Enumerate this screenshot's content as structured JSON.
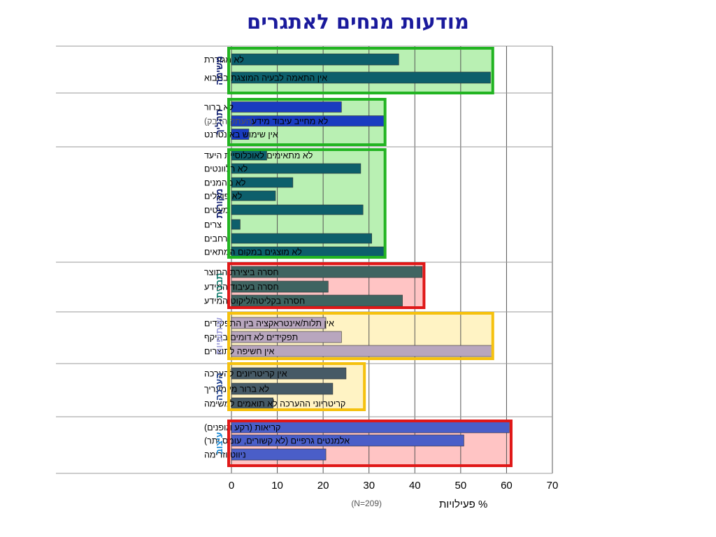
{
  "title": "מודעות מנחים לאתגרים",
  "chart_data": {
    "type": "bar",
    "orientation": "horizontal",
    "title": "מודעות מנחים לאתגרים",
    "xlabel": "% פעילויות",
    "xlabel_note": "(N=209)",
    "xlim": [
      0,
      70
    ],
    "xticks": [
      "0",
      "10",
      "20",
      "30",
      "40",
      "50",
      "60",
      "70"
    ],
    "grid": true,
    "groups": [
      {
        "name": "משימה",
        "name_color": "#0d1b6e",
        "box_color": "#22b422",
        "fill_color": "#b9f0b3",
        "box_max": 57,
        "bars": [
          {
            "label": "לא מגודרת",
            "value": 36.5,
            "color": "#0d5f6b"
          },
          {
            "label": "אין התאמה לבעיה המוצגת  במבוא",
            "value": 56.5,
            "color": "#0d5f6b"
          }
        ]
      },
      {
        "name": "תהליך",
        "name_color": "#0d1b6e",
        "box_color": "#22b422",
        "fill_color": "#b9f0b3",
        "box_max": 33.5,
        "bars": [
          {
            "label": "לא ברור",
            "value": 24,
            "color": "#1a3cc0"
          },
          {
            "label": "לא מחייב עיבוד מידע",
            "label_note": "(העתק הדבק)",
            "value": 33.5,
            "color": "#1a3cc0"
          },
          {
            "label": "אין שימוש באינטרנט",
            "value": 3.8,
            "color": "#1a3cc0"
          }
        ]
      },
      {
        "name": "מקורות",
        "name_color": "#0d1b6e",
        "box_color": "#22b422",
        "fill_color": "#b9f0b3",
        "box_max": 33.5,
        "bars": [
          {
            "label": "לא מתאימים לאוכלוסיית היעד",
            "value": 7.7,
            "color": "#0d5f6b"
          },
          {
            "label": "לא רלוונטים",
            "value": 28.2,
            "color": "#0d5f6b"
          },
          {
            "label": "לא מהמנים",
            "value": 13.4,
            "color": "#0d5f6b"
          },
          {
            "label": "לא פועלים",
            "value": 9.6,
            "color": "#0d5f6b"
          },
          {
            "label": "מעטים",
            "value": 28.7,
            "color": "#0d5f6b"
          },
          {
            "label": "צרים",
            "value": 1.9,
            "color": "#0d5f6b"
          },
          {
            "label": "רחבים",
            "value": 30.6,
            "color": "#0d5f6b"
          },
          {
            "label": "לא מוצגים במקום המתאים",
            "value": 33.5,
            "color": "#0d5f6b"
          }
        ]
      },
      {
        "name": "תבנית",
        "name_color": "#0f7a6b",
        "box_color": "#e01818",
        "fill_color": "#ffc4c4",
        "box_max": 42,
        "bars": [
          {
            "label": "חסרה ביצירת התוצר",
            "value": 41.6,
            "color": "#3f6461"
          },
          {
            "label": "חסרה בעיבוד המידע",
            "value": 21.1,
            "color": "#3f6461"
          },
          {
            "label": "חסרה בקליטה/ליקוט המידע",
            "value": 37.3,
            "color": "#3f6461"
          }
        ]
      },
      {
        "name": "שיתופיות",
        "name_color": "#a0a0dc",
        "box_color": "#f5c10f",
        "fill_color": "#fff3c4",
        "box_max": 57,
        "bars": [
          {
            "label": "אין תלות/אינטראקציה בין התפקידים",
            "value": 20.6,
            "color": "#b8a6be"
          },
          {
            "label": "תפקידים  לא דומים בהיקף",
            "value": 24,
            "color": "#b8a6be"
          },
          {
            "label": "אין חשיפה לתוצרים",
            "value": 56.8,
            "color": "#b8a6be"
          }
        ]
      },
      {
        "name": "הערכה",
        "name_color": "#1a3c8c",
        "box_color": "#f5c10f",
        "fill_color": "#fff3c4",
        "box_max": 29,
        "bars": [
          {
            "label": "אין קריטריונים להערכה",
            "value": 25,
            "color": "#465a66"
          },
          {
            "label": "לא ברור מי מעריך",
            "value": 22.1,
            "color": "#465a66"
          },
          {
            "label": "קריטריוני ההערכה לא תואמים למשימה",
            "value": 9.1,
            "color": "#465a66"
          }
        ]
      },
      {
        "name": "עיצוב",
        "name_color": "#1a8ad6",
        "box_color": "#e01818",
        "fill_color": "#ffc4c4",
        "box_max": 61,
        "bars": [
          {
            "label": "קריאות (רקע וגופנים)",
            "value": 60.6,
            "color": "#4a5ec8"
          },
          {
            "label": "אלמנטים גרפיים (לא קשורים, עומס יתר)",
            "value": 50.7,
            "color": "#4a5ec8"
          },
          {
            "label": "ניווט  וזרימה",
            "value": 20.6,
            "color": "#4a5ec8"
          }
        ]
      }
    ]
  }
}
